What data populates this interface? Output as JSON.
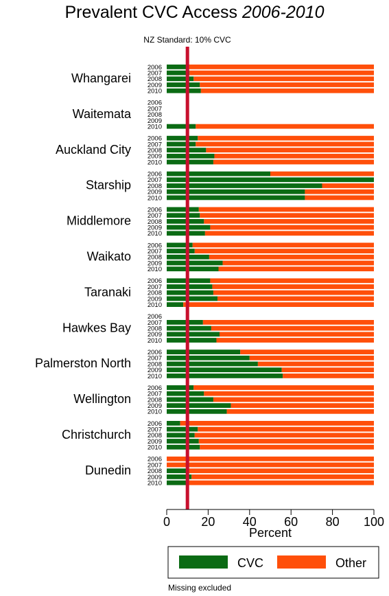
{
  "chart_data": {
    "type": "bar",
    "orientation": "horizontal",
    "stacked": true,
    "title": "Prevalent CVC Access",
    "title_italic": "2006-2010",
    "xlabel": "Percent",
    "xlim": [
      0,
      100
    ],
    "xticks": [
      0,
      20,
      40,
      60,
      80,
      100
    ],
    "reference_line": {
      "x": 10,
      "label": "NZ Standard: 10% CVC",
      "color": "#c8102e"
    },
    "year_labels": [
      "2006",
      "2007",
      "2008",
      "2009",
      "2010"
    ],
    "groups": [
      {
        "name": "Whangarei",
        "cvc": [
          9.5,
          11,
          13,
          16,
          16.5
        ]
      },
      {
        "name": "Waitemata",
        "cvc": [
          null,
          null,
          null,
          null,
          14
        ]
      },
      {
        "name": "Auckland City",
        "cvc": [
          15,
          14,
          19,
          23,
          22.5
        ]
      },
      {
        "name": "Starship",
        "cvc": [
          50,
          100,
          75,
          66.7,
          66.7
        ]
      },
      {
        "name": "Middlemore",
        "cvc": [
          15.5,
          16,
          18,
          21,
          18.5
        ]
      },
      {
        "name": "Waikato",
        "cvc": [
          12.5,
          13.5,
          20.5,
          27,
          25
        ]
      },
      {
        "name": "Taranaki",
        "cvc": [
          21,
          22,
          22.5,
          24.5,
          8
        ]
      },
      {
        "name": "Hawkes Bay",
        "cvc": [
          null,
          17.5,
          21.5,
          25.5,
          24
        ]
      },
      {
        "name": "Palmerston North",
        "cvc": [
          35.5,
          40,
          44,
          55.5,
          56
        ]
      },
      {
        "name": "Wellington",
        "cvc": [
          13,
          18,
          22.5,
          31,
          29
        ]
      },
      {
        "name": "Christchurch",
        "cvc": [
          6.5,
          15,
          13.5,
          15.5,
          16
        ]
      },
      {
        "name": "Dunedin",
        "cvc": [
          0,
          0,
          10,
          12,
          10
        ]
      }
    ],
    "series": [
      {
        "name": "CVC",
        "color": "#0b6b14"
      },
      {
        "name": "Other",
        "color": "#ff4f0a"
      }
    ],
    "legend_placement": "bottom",
    "note": "Missing excluded"
  }
}
